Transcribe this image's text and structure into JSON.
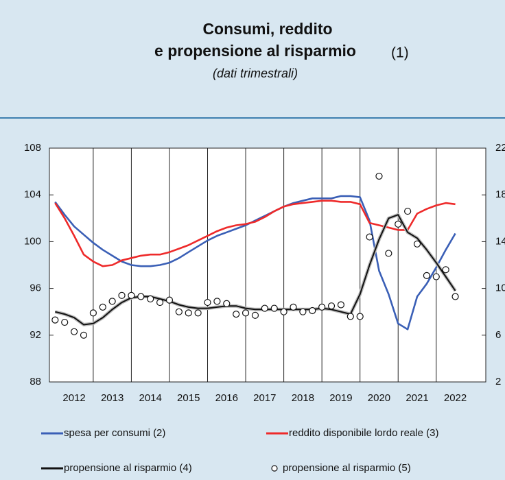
{
  "chart_data": {
    "type": "line",
    "title": [
      "Consumi, reddito",
      "e propensione al risparmio"
    ],
    "title_ref": "(1)",
    "subtitle": "(dati trimestrali)",
    "x": [
      2012,
      2012.25,
      2012.5,
      2012.75,
      2013,
      2013.25,
      2013.5,
      2013.75,
      2014,
      2014.25,
      2014.5,
      2014.75,
      2015,
      2015.25,
      2015.5,
      2015.75,
      2016,
      2016.25,
      2016.5,
      2016.75,
      2017,
      2017.25,
      2017.5,
      2017.75,
      2018,
      2018.25,
      2018.5,
      2018.75,
      2019,
      2019.25,
      2019.5,
      2019.75,
      2020,
      2020.25,
      2020.5,
      2020.75,
      2021,
      2021.25,
      2021.5,
      2021.75,
      2022,
      2022.25,
      2022.5
    ],
    "xlim": [
      2011.85,
      2023.3
    ],
    "xticks": [
      {
        "value": 2012.5,
        "label": "2012"
      },
      {
        "value": 2013.5,
        "label": "2013"
      },
      {
        "value": 2014.5,
        "label": "2014"
      },
      {
        "value": 2015.5,
        "label": "2015"
      },
      {
        "value": 2016.5,
        "label": "2016"
      },
      {
        "value": 2017.5,
        "label": "2017"
      },
      {
        "value": 2018.5,
        "label": "2018"
      },
      {
        "value": 2019.5,
        "label": "2019"
      },
      {
        "value": 2020.5,
        "label": "2020"
      },
      {
        "value": 2021.5,
        "label": "2021"
      },
      {
        "value": 2022.5,
        "label": "2022"
      }
    ],
    "ylim": [
      88,
      108
    ],
    "yticks": [
      88,
      92,
      96,
      100,
      104,
      108
    ],
    "y2lim": [
      2,
      22
    ],
    "y2ticks": [
      2,
      6,
      10,
      14,
      18,
      22
    ],
    "grid": true,
    "series": [
      {
        "name": "spesa per consumi (2)",
        "color": "#3a5fb6",
        "marker": "line",
        "values": [
          103.4,
          102.3,
          101.3,
          100.6,
          99.9,
          99.3,
          98.8,
          98.3,
          98.0,
          97.9,
          97.9,
          98.0,
          98.2,
          98.6,
          99.1,
          99.6,
          100.1,
          100.5,
          100.8,
          101.1,
          101.4,
          101.8,
          102.2,
          102.6,
          103.0,
          103.3,
          103.5,
          103.7,
          103.7,
          103.7,
          103.9,
          103.9,
          103.8,
          101.8,
          97.5,
          95.5,
          93.0,
          92.5,
          95.3,
          96.4,
          97.8,
          99.3,
          100.7
        ]
      },
      {
        "name": "reddito disponibile lordo reale (3)",
        "color": "#ee2a2a",
        "marker": "line",
        "values": [
          103.3,
          102.0,
          100.5,
          98.9,
          98.3,
          97.9,
          98.0,
          98.4,
          98.6,
          98.8,
          98.9,
          98.9,
          99.1,
          99.4,
          99.7,
          100.1,
          100.5,
          100.9,
          101.2,
          101.4,
          101.5,
          101.7,
          102.1,
          102.6,
          103.0,
          103.2,
          103.3,
          103.4,
          103.5,
          103.5,
          103.4,
          103.4,
          103.2,
          101.6,
          101.4,
          101.2,
          101.0,
          101.0,
          102.4,
          102.8,
          103.1,
          103.3,
          103.2
        ]
      },
      {
        "name": "propensione al risparmio (4)",
        "color": "#111111",
        "marker": "line",
        "axis": "y2",
        "values": [
          8.0,
          7.8,
          7.5,
          6.9,
          7.0,
          7.5,
          8.2,
          8.8,
          9.2,
          9.3,
          9.3,
          9.1,
          8.9,
          8.6,
          8.4,
          8.3,
          8.3,
          8.4,
          8.5,
          8.5,
          8.3,
          8.2,
          8.2,
          8.2,
          8.2,
          8.2,
          8.2,
          8.2,
          8.3,
          8.2,
          8.0,
          7.8,
          9.5,
          12.0,
          14.2,
          16.0,
          16.3,
          14.8,
          14.3,
          13.3,
          12.2,
          11.0,
          9.8
        ]
      },
      {
        "name": "propensione al risparmio (5)",
        "color": "#111111",
        "marker": "circle",
        "axis": "y2",
        "values": [
          7.3,
          7.1,
          6.3,
          6.0,
          7.9,
          8.4,
          8.9,
          9.4,
          9.4,
          9.3,
          9.1,
          8.8,
          9.0,
          8.0,
          7.9,
          7.9,
          8.8,
          8.9,
          8.7,
          7.8,
          7.9,
          7.7,
          8.3,
          8.3,
          8.0,
          8.4,
          8.0,
          8.1,
          8.4,
          8.5,
          8.6,
          7.6,
          7.6,
          14.4,
          19.6,
          13.0,
          15.5,
          16.6,
          13.8,
          11.1,
          11.0,
          11.6,
          9.3
        ]
      }
    ]
  }
}
